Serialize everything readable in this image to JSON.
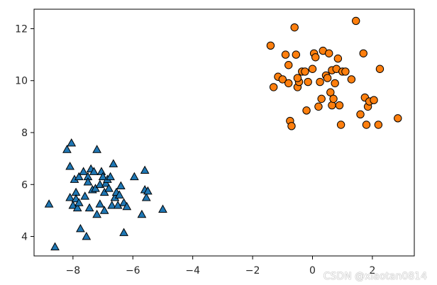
{
  "watermark": "CSDN @xiaotan0814",
  "chart_data": {
    "type": "scatter",
    "xlim": [
      -9.3,
      3.4
    ],
    "ylim": [
      3.25,
      12.75
    ],
    "xticks": [
      -8,
      -6,
      -4,
      -2,
      0,
      2
    ],
    "yticks": [
      4,
      6,
      8,
      10,
      12
    ],
    "xtick_labels": [
      "−8",
      "−6",
      "−4",
      "−2",
      "0",
      "2"
    ],
    "ytick_labels": [
      "4",
      "6",
      "8",
      "10",
      "12"
    ],
    "grid": false,
    "series": [
      {
        "marker": "triangle",
        "color": "#1f77b4",
        "edgecolor": "#000000",
        "points": [
          [
            -8.8,
            5.25
          ],
          [
            -8.6,
            3.6
          ],
          [
            -8.2,
            7.35
          ],
          [
            -8.05,
            7.6
          ],
          [
            -8.1,
            6.7
          ],
          [
            -8.0,
            5.2
          ],
          [
            -8.1,
            5.5
          ],
          [
            -7.9,
            5.7
          ],
          [
            -7.95,
            6.2
          ],
          [
            -7.9,
            5.45
          ],
          [
            -7.85,
            5.1
          ],
          [
            -7.8,
            5.3
          ],
          [
            -7.8,
            6.3
          ],
          [
            -7.65,
            6.5
          ],
          [
            -7.6,
            5.55
          ],
          [
            -7.5,
            6.3
          ],
          [
            -7.4,
            6.6
          ],
          [
            -7.5,
            6.1
          ],
          [
            -7.45,
            5.1
          ],
          [
            -7.35,
            5.8
          ],
          [
            -7.3,
            6.5
          ],
          [
            -7.25,
            5.85
          ],
          [
            -7.2,
            7.35
          ],
          [
            -7.2,
            4.85
          ],
          [
            -7.1,
            5.25
          ],
          [
            -7.1,
            6.0
          ],
          [
            -7.05,
            6.5
          ],
          [
            -7.0,
            6.3
          ],
          [
            -6.95,
            5.0
          ],
          [
            -6.95,
            5.7
          ],
          [
            -6.9,
            6.05
          ],
          [
            -6.85,
            6.2
          ],
          [
            -6.8,
            5.85
          ],
          [
            -6.75,
            6.3
          ],
          [
            -6.7,
            5.2
          ],
          [
            -6.65,
            6.8
          ],
          [
            -6.6,
            5.5
          ],
          [
            -6.55,
            5.7
          ],
          [
            -6.5,
            5.2
          ],
          [
            -6.45,
            5.6
          ],
          [
            -6.4,
            5.95
          ],
          [
            -6.3,
            5.3
          ],
          [
            -6.2,
            5.15
          ],
          [
            -5.95,
            6.3
          ],
          [
            -5.7,
            4.85
          ],
          [
            -5.6,
            6.55
          ],
          [
            -5.6,
            5.8
          ],
          [
            -5.55,
            5.5
          ],
          [
            -5.5,
            5.75
          ],
          [
            -5.0,
            5.05
          ],
          [
            -7.55,
            4.0
          ],
          [
            -7.75,
            4.3
          ],
          [
            -6.3,
            4.15
          ]
        ]
      },
      {
        "marker": "circle",
        "color": "#ff7f0e",
        "edgecolor": "#000000",
        "points": [
          [
            -1.4,
            11.35
          ],
          [
            -1.3,
            9.75
          ],
          [
            -1.15,
            10.15
          ],
          [
            -1.0,
            10.05
          ],
          [
            -0.9,
            11.0
          ],
          [
            -0.8,
            10.6
          ],
          [
            -0.8,
            9.9
          ],
          [
            -0.75,
            8.45
          ],
          [
            -0.7,
            8.25
          ],
          [
            -0.6,
            12.05
          ],
          [
            -0.55,
            11.0
          ],
          [
            -0.5,
            9.75
          ],
          [
            -0.45,
            9.95
          ],
          [
            -0.35,
            10.35
          ],
          [
            -0.25,
            10.35
          ],
          [
            -0.15,
            9.95
          ],
          [
            -0.2,
            8.85
          ],
          [
            0.0,
            10.45
          ],
          [
            0.05,
            11.05
          ],
          [
            0.2,
            9.0
          ],
          [
            0.25,
            9.95
          ],
          [
            0.3,
            9.3
          ],
          [
            0.35,
            11.15
          ],
          [
            0.45,
            10.2
          ],
          [
            0.5,
            10.1
          ],
          [
            0.55,
            11.05
          ],
          [
            0.6,
            9.55
          ],
          [
            0.65,
            9.05
          ],
          [
            0.65,
            10.4
          ],
          [
            0.7,
            9.3
          ],
          [
            0.75,
            9.9
          ],
          [
            0.8,
            10.45
          ],
          [
            0.85,
            10.85
          ],
          [
            0.9,
            9.05
          ],
          [
            0.95,
            8.3
          ],
          [
            1.0,
            10.35
          ],
          [
            1.1,
            10.35
          ],
          [
            1.3,
            10.05
          ],
          [
            1.45,
            12.3
          ],
          [
            1.6,
            8.7
          ],
          [
            1.7,
            11.05
          ],
          [
            1.75,
            9.35
          ],
          [
            1.8,
            8.3
          ],
          [
            1.85,
            9.0
          ],
          [
            1.9,
            9.2
          ],
          [
            2.05,
            9.25
          ],
          [
            2.2,
            8.3
          ],
          [
            2.25,
            10.45
          ],
          [
            2.85,
            8.55
          ],
          [
            0.1,
            10.9
          ],
          [
            -0.5,
            10.1
          ]
        ]
      }
    ]
  }
}
